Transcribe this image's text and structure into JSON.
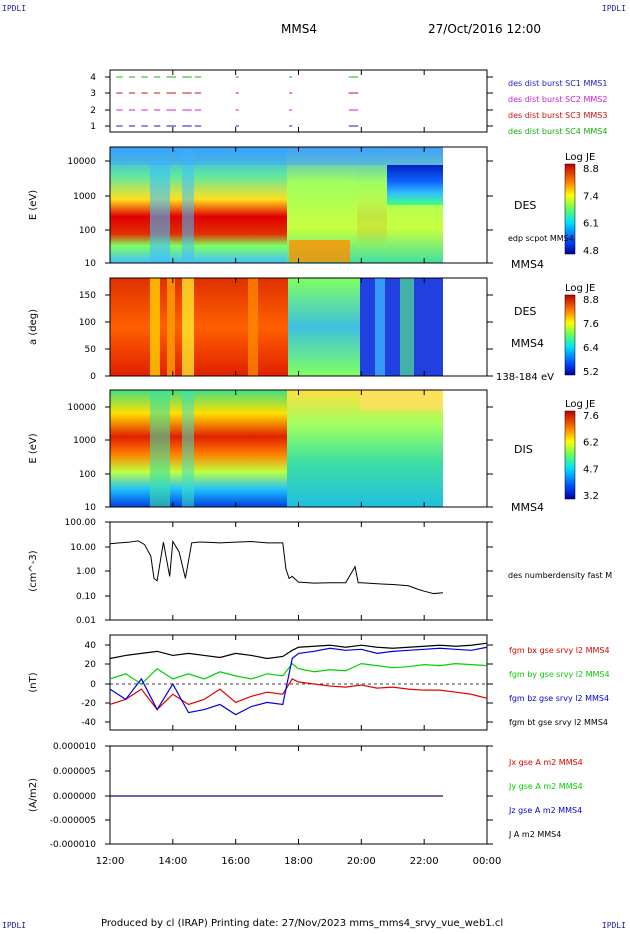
{
  "header": {
    "corner_tl": "IPDLI",
    "corner_tr": "IPDLI",
    "corner_bl": "IPDLI",
    "corner_br": "IPDLI",
    "spacecraft": "MMS4",
    "datetime": "27/Oct/2016 12:00"
  },
  "footer": {
    "text": "Produced by cl (IRAP)   Printing date: 27/Nov/2023   mms_mms4_srvy_vue_web1.cl"
  },
  "colors": {
    "mms1": "#1a1ad0",
    "mms2": "#d020d0",
    "mms3": "#d01010",
    "mms4": "#10b010",
    "bx": "#e00000",
    "by": "#00d000",
    "bz": "#0000e0",
    "bt": "#000000"
  },
  "chart_data": [
    {
      "id": "burst",
      "type": "scatter",
      "yticks": [
        "1",
        "2",
        "3",
        "4"
      ],
      "legend": [
        {
          "label": "des dist burst SC1 MMS1",
          "color": "#1a1ad0"
        },
        {
          "label": "des dist burst SC2 MMS2",
          "color": "#d020d0"
        },
        {
          "label": "des dist burst SC3 MMS3",
          "color": "#d01010"
        },
        {
          "label": "des dist burst SC4 MMS4",
          "color": "#10b010"
        }
      ],
      "intervals_hours": [
        [
          12.2,
          12.4
        ],
        [
          12.6,
          12.8
        ],
        [
          13.0,
          13.2
        ],
        [
          13.4,
          13.6
        ],
        [
          13.8,
          14.1
        ],
        [
          14.3,
          14.6
        ],
        [
          14.7,
          14.9
        ],
        [
          16.0,
          16.1
        ],
        [
          17.7,
          17.8
        ],
        [
          19.6,
          19.9
        ]
      ]
    },
    {
      "id": "des-energy",
      "type": "heatmap",
      "ylabel": "E (eV)",
      "yticks": [
        "10",
        "100",
        "1000",
        "10000"
      ],
      "right_label": "DES",
      "overlay_label": "edp scpot MMS4",
      "sc_label": "MMS4",
      "colorbar": {
        "title": "Log JE",
        "ticks": [
          "8.8",
          "7.4",
          "6.1",
          "4.8"
        ]
      }
    },
    {
      "id": "des-pitch",
      "type": "heatmap",
      "ylabel": "a (deg)",
      "yticks": [
        "0",
        "50",
        "100",
        "150"
      ],
      "right_label": "DES",
      "sc_label": "MMS4",
      "energy_range": "138-184 eV",
      "colorbar": {
        "title": "Log JE",
        "ticks": [
          "8.8",
          "7.6",
          "6.4",
          "5.2"
        ]
      }
    },
    {
      "id": "dis-energy",
      "type": "heatmap",
      "ylabel": "E (eV)",
      "yticks": [
        "10",
        "100",
        "1000",
        "10000"
      ],
      "right_label": "DIS",
      "sc_label": "MMS4",
      "colorbar": {
        "title": "Log JE",
        "ticks": [
          "7.6",
          "6.2",
          "4.7",
          "3.2"
        ]
      }
    },
    {
      "id": "density",
      "type": "line",
      "ylabel": "(cm^-3)",
      "yscale": "log",
      "yticks": [
        "0.01",
        "0.10",
        "1.00",
        "10.00",
        "100.00"
      ],
      "series": [
        {
          "name": "des numberdensity fast M",
          "color": "#000000",
          "x": [
            12.0,
            12.3,
            12.6,
            12.9,
            13.1,
            13.3,
            13.4,
            13.5,
            13.7,
            13.9,
            14.0,
            14.2,
            14.4,
            14.6,
            14.8,
            15.0,
            15.5,
            16.0,
            16.5,
            17.0,
            17.5,
            17.6,
            17.7,
            17.8,
            18.0,
            18.5,
            19.0,
            19.5,
            19.8,
            19.9,
            20.0,
            20.5,
            21.0,
            21.5,
            21.8,
            22.0,
            22.3,
            22.6
          ],
          "y": [
            13,
            14,
            15,
            17,
            12,
            4,
            0.5,
            0.4,
            15,
            0.6,
            16,
            6,
            0.5,
            14,
            15,
            15,
            14,
            15,
            16,
            14,
            14,
            1.2,
            0.5,
            0.6,
            0.35,
            0.32,
            0.33,
            0.33,
            1.5,
            0.33,
            0.33,
            0.3,
            0.28,
            0.25,
            0.18,
            0.15,
            0.12,
            0.13
          ]
        }
      ]
    },
    {
      "id": "magnetic-field",
      "type": "line",
      "ylabel": "(nT)",
      "yticks": [
        "-40",
        "-20",
        "0",
        "20",
        "40"
      ],
      "ylim": [
        -45,
        48
      ],
      "series": [
        {
          "name": "fgm bx gse srvy l2 MMS4",
          "color": "#e00000",
          "x": [
            12.0,
            12.5,
            13.0,
            13.5,
            14.0,
            14.5,
            15.0,
            15.5,
            16.0,
            16.5,
            17.0,
            17.5,
            17.8,
            18.0,
            18.5,
            19.0,
            19.5,
            20.0,
            20.5,
            21.0,
            21.5,
            22.0,
            22.5,
            23.0,
            23.5,
            24.0
          ],
          "y": [
            -20,
            -15,
            -5,
            -25,
            -10,
            -20,
            -15,
            -5,
            -18,
            -12,
            -8,
            -10,
            5,
            2,
            0,
            -2,
            -3,
            -1,
            -4,
            -3,
            -5,
            -6,
            -6,
            -8,
            -10,
            -14
          ]
        },
        {
          "name": "fgm by gse srvy l2 MMS4",
          "color": "#00d000",
          "x": [
            12.0,
            12.5,
            13.0,
            13.5,
            14.0,
            14.5,
            15.0,
            15.5,
            16.0,
            16.5,
            17.0,
            17.5,
            17.8,
            18.0,
            18.5,
            19.0,
            19.5,
            20.0,
            20.5,
            21.0,
            21.5,
            22.0,
            22.5,
            23.0,
            23.5,
            24.0
          ],
          "y": [
            5,
            10,
            0,
            15,
            5,
            10,
            5,
            12,
            8,
            5,
            10,
            8,
            20,
            15,
            12,
            14,
            13,
            20,
            18,
            16,
            17,
            19,
            18,
            20,
            19,
            18
          ]
        },
        {
          "name": "fgm bz gse srvy l2 MMS4",
          "color": "#0000e0",
          "x": [
            12.0,
            12.5,
            13.0,
            13.5,
            14.0,
            14.5,
            15.0,
            15.5,
            16.0,
            16.5,
            17.0,
            17.5,
            17.8,
            18.0,
            18.5,
            19.0,
            19.5,
            20.0,
            20.5,
            21.0,
            21.5,
            22.0,
            22.5,
            23.0,
            23.5,
            24.0
          ],
          "y": [
            -5,
            -15,
            5,
            -25,
            0,
            -28,
            -25,
            -20,
            -30,
            -22,
            -18,
            -20,
            25,
            30,
            32,
            35,
            33,
            34,
            30,
            32,
            33,
            34,
            35,
            34,
            33,
            36
          ]
        },
        {
          "name": "fgm bt gse srvy l2 MMS4",
          "color": "#000000",
          "x": [
            12.0,
            12.5,
            13.0,
            13.5,
            14.0,
            14.5,
            15.0,
            15.5,
            16.0,
            16.5,
            17.0,
            17.5,
            17.8,
            18.0,
            18.5,
            19.0,
            19.5,
            20.0,
            20.5,
            21.0,
            21.5,
            22.0,
            22.5,
            23.0,
            23.5,
            24.0
          ],
          "y": [
            25,
            28,
            30,
            32,
            28,
            30,
            28,
            26,
            30,
            28,
            25,
            27,
            33,
            36,
            37,
            38,
            36,
            38,
            36,
            35,
            36,
            37,
            38,
            37,
            38,
            40
          ]
        }
      ]
    },
    {
      "id": "current",
      "type": "line",
      "ylabel": "(A/m2)",
      "yticks": [
        "-0.000010",
        "-0.000005",
        "0.000000",
        "0.000005",
        "0.000010"
      ],
      "ylim": [
        -1e-05,
        1e-05
      ],
      "series": [
        {
          "name": "Jx gse A m2 MMS4",
          "color": "#e00000"
        },
        {
          "name": "Jy gse A m2 MMS4",
          "color": "#00d000"
        },
        {
          "name": "Jz gse A m2 MMS4",
          "color": "#0000e0"
        },
        {
          "name": "J A m2 MMS4",
          "color": "#000000"
        }
      ]
    }
  ],
  "xaxis": {
    "ticks": [
      "12:00",
      "14:00",
      "16:00",
      "18:00",
      "20:00",
      "22:00",
      "00:00"
    ]
  }
}
